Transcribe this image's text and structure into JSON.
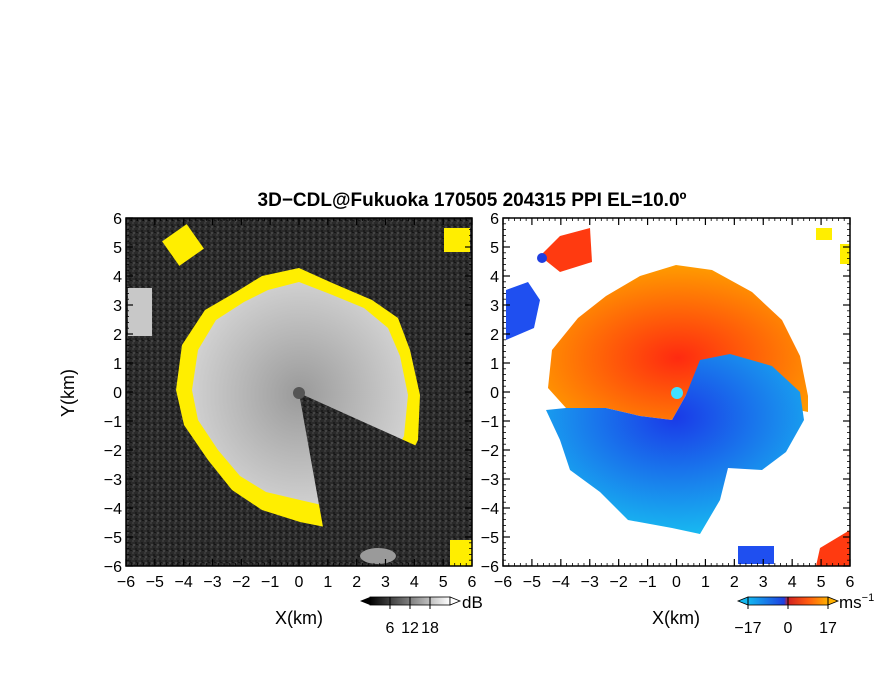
{
  "title": "3D−CDL@Fukuoka 170505 204315 PPI EL=10.0º",
  "colors": {
    "reflect_bg": "#2b2b2b",
    "reflect_gray": "#bdbdbd",
    "reflect_yellow": "#ffee00",
    "vel_neg": "#1f4ff0",
    "vel_neg_far": "#12b8f0",
    "vel_pos": "#ff3a10",
    "vel_pos_far": "#ff9a00",
    "center_cyan": "#40e0ff"
  },
  "chart_data": [
    {
      "type": "heatmap",
      "panel": "reflectivity",
      "xlabel": "X(km)",
      "ylabel": "Y(km)",
      "xlim": [
        -6,
        6
      ],
      "ylim": [
        -6,
        6
      ],
      "xticks": [
        "−6",
        "−5",
        "−4",
        "−3",
        "−2",
        "−1",
        "0",
        "1",
        "2",
        "3",
        "4",
        "5",
        "6"
      ],
      "yticks": [
        "6",
        "5",
        "4",
        "3",
        "2",
        "1",
        "0",
        "−1",
        "−2",
        "−3",
        "−4",
        "−5",
        "−6"
      ],
      "colorbar": {
        "unit": "dB",
        "ticks": [
          "6",
          "12",
          "18"
        ],
        "range": [
          0,
          24
        ]
      },
      "echo_radius_km": 3.8
    },
    {
      "type": "heatmap",
      "panel": "doppler_velocity",
      "xlabel": "X(km)",
      "ylabel": "",
      "xlim": [
        -6,
        6
      ],
      "ylim": [
        -6,
        6
      ],
      "xticks": [
        "−6",
        "−5",
        "−4",
        "−3",
        "−2",
        "−1",
        "0",
        "1",
        "2",
        "3",
        "4",
        "5",
        "6"
      ],
      "yticks": [
        "6",
        "5",
        "4",
        "3",
        "2",
        "1",
        "0",
        "−1",
        "−2",
        "−3",
        "−4",
        "−5",
        "−6"
      ],
      "colorbar": {
        "unit": "ms",
        "unit_exp": "−1",
        "ticks": [
          "−17",
          "0",
          "17"
        ],
        "range": [
          -17,
          17
        ]
      },
      "echo_radius_km": 4.2
    }
  ]
}
